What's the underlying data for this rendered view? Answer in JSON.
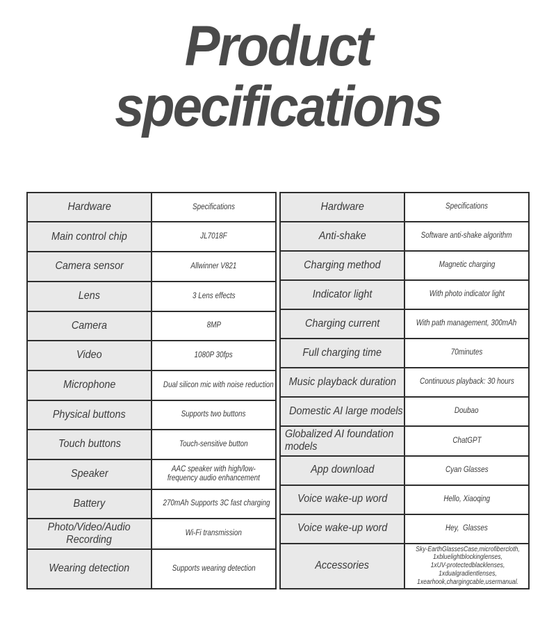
{
  "title": "Product specifications",
  "colors": {
    "border": "#2e2e2e",
    "label_bg": "#e9e9e9",
    "value_bg": "#ffffff",
    "text": "#3a3a3a",
    "title": "#4a4a4a"
  },
  "tables": [
    {
      "name": "left",
      "rows": [
        {
          "label": "Hardware",
          "value": "Specifications",
          "header": true
        },
        {
          "label": "Main control chip",
          "value": "JL7018F"
        },
        {
          "label": "Camera sensor",
          "value": "Allwinner V821"
        },
        {
          "label": "Lens",
          "value": "3 Lens effects"
        },
        {
          "label": "Camera",
          "value": "8MP"
        },
        {
          "label": "Video",
          "value": "1080P 30fps"
        },
        {
          "label": "Microphone",
          "value": "Dual silicon mic with noise reduction"
        },
        {
          "label": "Physical buttons",
          "value": "Supports two buttons"
        },
        {
          "label": "Touch buttons",
          "value": "Touch-sensitive button"
        },
        {
          "label": "Speaker",
          "value": "AAC speaker with high/low-\nfrequency audio enhancement"
        },
        {
          "label": "Battery",
          "value": "270mAh Supports 3C fast charging"
        },
        {
          "label": "Photo/Video/Audio\nRecording",
          "value": "Wi-Fi transmission"
        },
        {
          "label": "Wearing detection",
          "value": "Supports wearing detection"
        }
      ]
    },
    {
      "name": "right",
      "rows": [
        {
          "label": "Hardware",
          "value": "Specifications",
          "header": true
        },
        {
          "label": "Anti-shake",
          "value": "Software anti-shake algorithm"
        },
        {
          "label": "Charging method",
          "value": "Magnetic charging"
        },
        {
          "label": "Indicator light",
          "value": "With photo indicator light"
        },
        {
          "label": "Charging current",
          "value": "With path management, 300mAh"
        },
        {
          "label": "Full charging time",
          "value": "70minutes"
        },
        {
          "label": "Music playback duration",
          "value": "Continuous playback: 30 hours"
        },
        {
          "label": "Domestic AI large models",
          "value": "Doubao"
        },
        {
          "label": "Globalized AI foundation\nmodels",
          "value": "ChatGPT",
          "label_align": "left"
        },
        {
          "label": "App download",
          "value": "Cyan Glasses"
        },
        {
          "label": "Voice wake-up word",
          "value": "Hello, Xiaoqing"
        },
        {
          "label": "Voice wake-up word",
          "value": "Hey,  Glasses"
        },
        {
          "label": "Accessories",
          "value": "Sky-EarthGlassesCase,microfibercloth,\n1xbluelightblockinglenses,\n1xUV-protectedblacklenses,\n1xdualgradientlenses,\n1xearhook,chargingcable,usermanual.",
          "value_small": true
        }
      ]
    }
  ]
}
